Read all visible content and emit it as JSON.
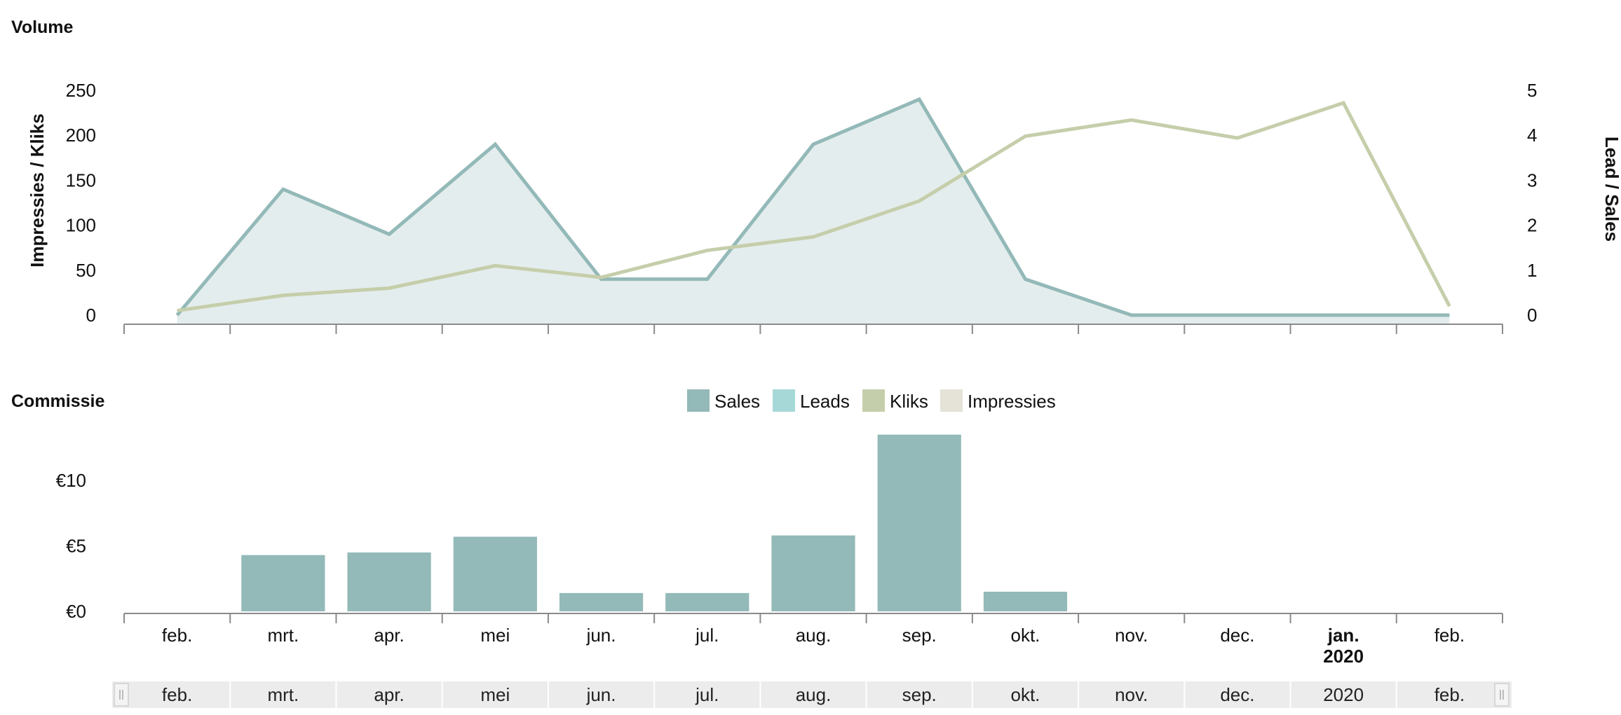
{
  "volume_title": "Volume",
  "commission_title": "Commissie",
  "colors": {
    "sales": "#93b9b8",
    "sales_fill": "#e4eded",
    "leads": "#a7d8d8",
    "kliks": "#c5ceaa",
    "impressies": "#e5e2d8",
    "axis": "#8a8a8a",
    "navigator_bg": "#ececec"
  },
  "chart_data": [
    {
      "type": "line",
      "title": "Volume",
      "categories": [
        "feb.",
        "mrt.",
        "apr.",
        "mei",
        "jun.",
        "jul.",
        "aug.",
        "sep.",
        "okt.",
        "nov.",
        "dec.",
        "jan.",
        "feb."
      ],
      "ylabel_left": "Impressies / Kliks",
      "ylabel_right": "Lead / Sales",
      "ylim_left": [
        0,
        250
      ],
      "ylim_right": [
        0,
        5
      ],
      "yticks_left": [
        "0",
        "50",
        "100",
        "150",
        "200",
        "250"
      ],
      "yticks_right": [
        "0",
        "1",
        "2",
        "3",
        "4",
        "5"
      ],
      "series": [
        {
          "name": "Sales",
          "axis": "right",
          "style": "area",
          "values": [
            0,
            2.8,
            1.8,
            3.8,
            0.8,
            0.8,
            3.8,
            4.8,
            0.8,
            0,
            0,
            0,
            0
          ]
        },
        {
          "name": "Kliks",
          "axis": "left",
          "style": "line",
          "values": [
            5,
            22,
            30,
            55,
            42,
            72,
            87,
            127,
            199,
            217,
            197,
            236,
            10
          ]
        }
      ]
    },
    {
      "type": "bar",
      "title": "Commissie",
      "categories": [
        "feb.",
        "mrt.",
        "apr.",
        "mei",
        "jun.",
        "jul.",
        "aug.",
        "sep.",
        "okt.",
        "nov.",
        "dec.",
        "jan.",
        "feb."
      ],
      "category_sublabels": [
        "",
        "",
        "",
        "",
        "",
        "",
        "",
        "",
        "",
        "",
        "",
        "2020",
        ""
      ],
      "ylim": [
        0,
        13
      ],
      "yticks": [
        "€0",
        "€5",
        "€10"
      ],
      "series": [
        {
          "name": "Sales",
          "values": [
            0,
            4.3,
            4.5,
            5.7,
            1.4,
            1.4,
            5.8,
            13.5,
            1.5,
            0,
            0,
            0,
            0
          ]
        }
      ],
      "legend": [
        "Sales",
        "Leads",
        "Kliks",
        "Impressies"
      ],
      "legend_position": "top-center"
    }
  ],
  "navigator": {
    "labels": [
      "feb.",
      "mrt.",
      "apr.",
      "mei",
      "jun.",
      "jul.",
      "aug.",
      "sep.",
      "okt.",
      "nov.",
      "dec.",
      "2020",
      "feb."
    ]
  }
}
